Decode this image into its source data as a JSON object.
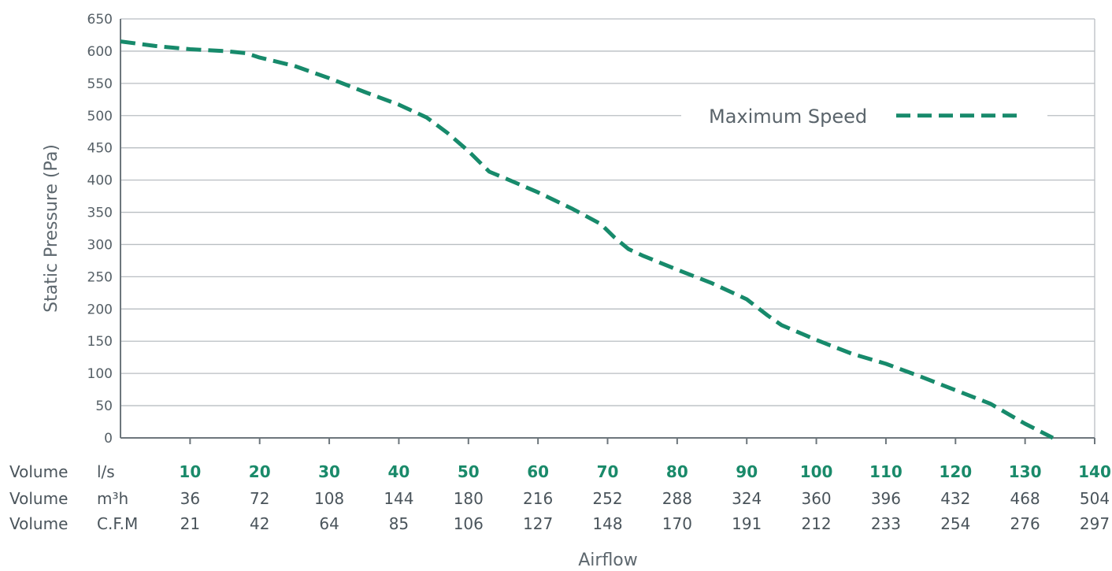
{
  "chart_data": {
    "type": "line",
    "xlabel": "Airflow",
    "ylabel": "Static Pressure (Pa)",
    "xlim": [
      0,
      140
    ],
    "ylim": [
      0,
      650
    ],
    "yticks": [
      "0",
      "50",
      "100",
      "150",
      "200",
      "250",
      "300",
      "350",
      "400",
      "450",
      "500",
      "550",
      "600",
      "650"
    ],
    "grid": true,
    "legend": {
      "placement": "top-right",
      "label": "Maximum Speed"
    },
    "series": [
      {
        "name": "Maximum Speed",
        "color": "#178a6b",
        "style": "dashed",
        "points": [
          [
            0,
            615
          ],
          [
            5,
            608
          ],
          [
            10,
            603
          ],
          [
            15,
            600
          ],
          [
            18,
            597
          ],
          [
            20,
            590
          ],
          [
            25,
            577
          ],
          [
            30,
            558
          ],
          [
            35,
            537
          ],
          [
            40,
            517
          ],
          [
            44,
            497
          ],
          [
            47,
            473
          ],
          [
            50,
            445
          ],
          [
            53,
            413
          ],
          [
            55,
            404
          ],
          [
            60,
            381
          ],
          [
            65,
            355
          ],
          [
            69,
            332
          ],
          [
            71,
            311
          ],
          [
            73,
            293
          ],
          [
            75,
            283
          ],
          [
            80,
            261
          ],
          [
            85,
            240
          ],
          [
            90,
            215
          ],
          [
            93,
            190
          ],
          [
            95,
            175
          ],
          [
            100,
            152
          ],
          [
            105,
            131
          ],
          [
            110,
            115
          ],
          [
            115,
            95
          ],
          [
            120,
            74
          ],
          [
            125,
            53
          ],
          [
            130,
            22
          ],
          [
            134,
            0
          ]
        ]
      }
    ],
    "table": {
      "rows": [
        {
          "label": "Volume",
          "unit": "l/s",
          "highlight": true,
          "values": [
            "10",
            "20",
            "30",
            "40",
            "50",
            "60",
            "70",
            "80",
            "90",
            "100",
            "110",
            "120",
            "130",
            "140"
          ]
        },
        {
          "label": "Volume",
          "unit": "m³h",
          "highlight": false,
          "values": [
            "36",
            "72",
            "108",
            "144",
            "180",
            "216",
            "252",
            "288",
            "324",
            "360",
            "396",
            "432",
            "468",
            "504"
          ]
        },
        {
          "label": "Volume",
          "unit": "C.F.M",
          "highlight": false,
          "values": [
            "21",
            "42",
            "64",
            "85",
            "106",
            "127",
            "148",
            "170",
            "191",
            "212",
            "233",
            "254",
            "276",
            "297"
          ]
        }
      ]
    }
  }
}
